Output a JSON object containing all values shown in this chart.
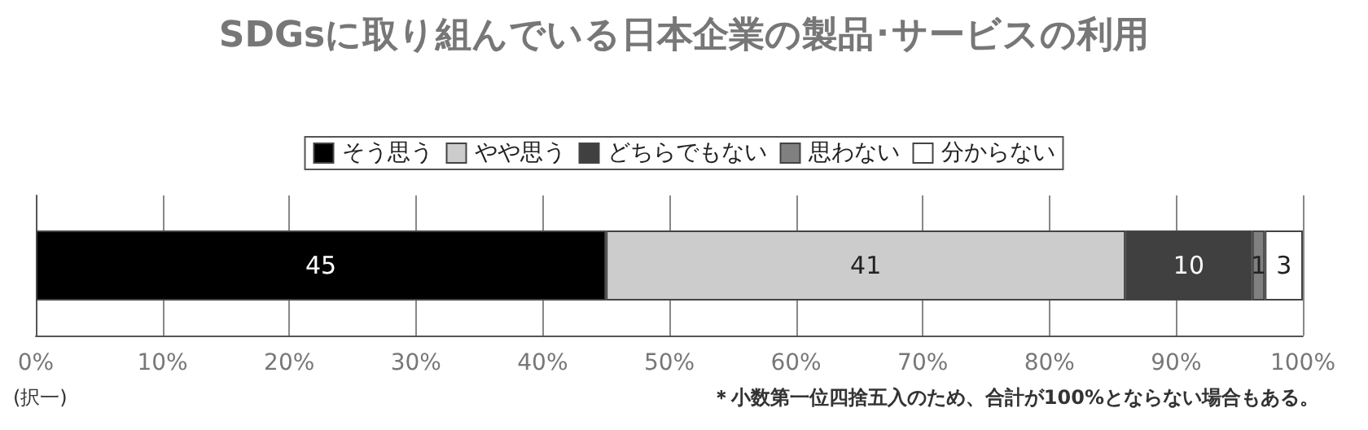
{
  "chart_data": {
    "type": "bar",
    "orientation": "horizontal",
    "stacked": true,
    "title": "SDGsに取り組んでいる日本企業の製品･サービスの利用",
    "categories": [
      null
    ],
    "series": [
      {
        "name": "そう思う",
        "color": "#000000",
        "values": [
          45
        ]
      },
      {
        "name": "やや思う",
        "color": "#cccccc",
        "values": [
          41
        ]
      },
      {
        "name": "どちらでもない",
        "color": "#404040",
        "values": [
          10
        ]
      },
      {
        "name": "思わない",
        "color": "#808080",
        "values": [
          1
        ]
      },
      {
        "name": "分からない",
        "color": "#ffffff",
        "values": [
          3
        ]
      }
    ],
    "data_labels": true,
    "legend": "top",
    "grid": "x",
    "xlim": [
      0,
      100
    ],
    "xticks": [
      {
        "value": 0,
        "label": "0%"
      },
      {
        "value": 10,
        "label": "10%"
      },
      {
        "value": 20,
        "label": "20%"
      },
      {
        "value": 30,
        "label": "30%"
      },
      {
        "value": 40,
        "label": "40%"
      },
      {
        "value": 50,
        "label": "50%"
      },
      {
        "value": 60,
        "label": "60%"
      },
      {
        "value": 70,
        "label": "70%"
      },
      {
        "value": 80,
        "label": "80%"
      },
      {
        "value": 90,
        "label": "90%"
      },
      {
        "value": 100,
        "label": "100%"
      }
    ],
    "annotations": [
      "(択一)",
      "＊小数第一位四捨五入のため、合計が100%とならない場合もある。"
    ]
  }
}
